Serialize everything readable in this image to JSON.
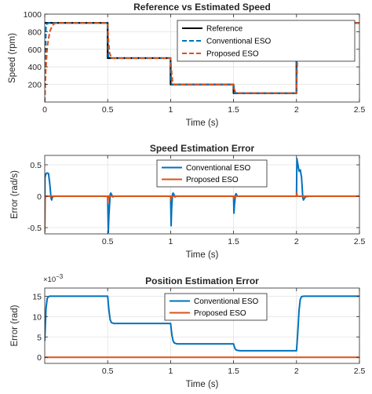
{
  "chart_data": [
    {
      "type": "line",
      "title": "Reference vs Estimated Speed",
      "xlabel": "Time (s)",
      "ylabel": "Speed (rpm)",
      "xlim": [
        0,
        2.5
      ],
      "ylim": [
        0,
        1000
      ],
      "xticks": [
        0,
        0.5,
        1,
        1.5,
        2,
        2.5
      ],
      "xtick_labels": [
        "0",
        "0.5",
        "1",
        "1.5",
        "2",
        "2.5"
      ],
      "yticks": [
        200,
        400,
        600,
        800,
        1000
      ],
      "ytick_labels": [
        "200",
        "400",
        "600",
        "800",
        "1000"
      ],
      "grid": true,
      "legend_position": "top-right",
      "series": [
        {
          "name": "Reference",
          "color": "#000000",
          "style": "solid",
          "x": [
            0,
            0,
            0.5,
            0.5,
            1,
            1,
            1.5,
            1.5,
            2,
            2,
            2.5
          ],
          "y": [
            900,
            900,
            900,
            500,
            500,
            200,
            200,
            100,
            100,
            900,
            900
          ]
        },
        {
          "name": "Conventional ESO",
          "color": "#0072BD",
          "style": "dashed",
          "x": [
            0,
            0.01,
            0.03,
            0.5,
            0.505,
            0.51,
            1,
            1.005,
            1.01,
            1.5,
            1.505,
            1.51,
            2,
            2.005,
            2.015,
            2.5
          ],
          "y": [
            0,
            880,
            900,
            900,
            520,
            500,
            500,
            215,
            200,
            200,
            110,
            100,
            100,
            880,
            900,
            900
          ]
        },
        {
          "name": "Proposed ESO",
          "color": "#D95319",
          "style": "dashed",
          "x": [
            0,
            0.008,
            0.02,
            0.04,
            0.06,
            0.08,
            0.1,
            0.5,
            0.505,
            0.515,
            0.53,
            1,
            1.005,
            1.015,
            1.03,
            1.5,
            1.505,
            1.515,
            1.53,
            2,
            2.005,
            2.02,
            2.035,
            2.5
          ],
          "y": [
            0,
            350,
            630,
            800,
            870,
            895,
            900,
            900,
            720,
            560,
            500,
            500,
            380,
            240,
            200,
            200,
            150,
            110,
            100,
            100,
            400,
            780,
            900,
            900
          ]
        }
      ]
    },
    {
      "type": "line",
      "title": "Speed Estimation Error",
      "xlabel": "Time (s)",
      "ylabel": "Error (rad/s)",
      "xlim": [
        0,
        2.5
      ],
      "ylim": [
        -0.6,
        0.65
      ],
      "xticks": [
        0.5,
        1,
        1.5,
        2,
        2.5
      ],
      "xtick_labels": [
        "0.5",
        "1",
        "1.5",
        "2",
        "2.5"
      ],
      "yticks": [
        -0.5,
        0,
        0.5
      ],
      "ytick_labels": [
        "-0.5",
        "0",
        "0.5"
      ],
      "grid": true,
      "legend_position": "top-center",
      "series": [
        {
          "name": "Conventional ESO",
          "color": "#0072BD",
          "style": "solid",
          "x": [
            0,
            0.002,
            0.01,
            0.02,
            0.03,
            0.04,
            0.05,
            0.055,
            0.06,
            0.07,
            0.1,
            0.5,
            0.505,
            0.51,
            0.52,
            0.525,
            0.53,
            0.54,
            0.55,
            1,
            1.004,
            1.008,
            1.015,
            1.02,
            1.028,
            1.035,
            1.045,
            1.5,
            1.503,
            1.507,
            1.515,
            1.52,
            1.53,
            1.54,
            2,
            2.003,
            2.01,
            2.02,
            2.03,
            2.04,
            2.05,
            2.055,
            2.07,
            2.1,
            2.5
          ],
          "y": [
            -0.55,
            0.3,
            0.36,
            0.37,
            0.36,
            0.2,
            -0.03,
            -0.06,
            -0.02,
            0,
            0,
            0,
            -0.58,
            -0.3,
            0.03,
            0.05,
            0.03,
            -0.01,
            0,
            0,
            -0.47,
            -0.2,
            0.03,
            0.05,
            0.02,
            -0.01,
            0,
            0,
            -0.27,
            -0.14,
            0.02,
            0.04,
            0,
            0,
            0,
            0.6,
            0.52,
            0.4,
            0.42,
            0.3,
            -0.02,
            -0.06,
            -0.01,
            0,
            0
          ]
        },
        {
          "name": "Proposed ESO",
          "color": "#D95319",
          "style": "solid",
          "x": [
            0,
            0.003,
            0.006,
            0.5,
            0.502,
            0.506,
            1,
            1.002,
            1.006,
            1.5,
            1.502,
            1.506,
            2,
            2.002,
            2.006,
            2.5
          ],
          "y": [
            -0.58,
            -0.05,
            0,
            0,
            -0.1,
            0,
            0,
            -0.06,
            0,
            0,
            -0.04,
            0,
            0,
            0.05,
            0,
            0
          ]
        }
      ]
    },
    {
      "type": "line",
      "title": "Position Estimation Error",
      "xlabel": "Time (s)",
      "ylabel": "Error (rad)",
      "axis_exponent": "×10",
      "axis_exponent_power": "−3",
      "xlim": [
        0,
        2.5
      ],
      "ylim": [
        -0.0015,
        0.017
      ],
      "xticks": [
        0.5,
        1,
        1.5,
        2,
        2.5
      ],
      "xtick_labels": [
        "0.5",
        "1",
        "1.5",
        "2",
        "2.5"
      ],
      "yticks": [
        0,
        0.005,
        0.01,
        0.015
      ],
      "ytick_labels": [
        "0",
        "5",
        "10",
        "15"
      ],
      "grid": true,
      "legend_position": "top-center",
      "series": [
        {
          "name": "Conventional ESO",
          "color": "#0072BD",
          "style": "solid",
          "x": [
            0,
            0.01,
            0.02,
            0.03,
            0.04,
            0.06,
            0.5,
            0.51,
            0.52,
            0.53,
            0.55,
            1,
            1.01,
            1.02,
            1.03,
            1.05,
            1.5,
            1.51,
            1.52,
            1.53,
            1.55,
            2,
            2.01,
            2.02,
            2.03,
            2.04,
            2.06,
            2.5
          ],
          "y": [
            0.004,
            0.012,
            0.0145,
            0.0149,
            0.015,
            0.015,
            0.015,
            0.0115,
            0.0092,
            0.0085,
            0.0083,
            0.0083,
            0.0055,
            0.004,
            0.0035,
            0.0033,
            0.0033,
            0.0022,
            0.0018,
            0.0017,
            0.0016,
            0.0016,
            0.006,
            0.0115,
            0.0142,
            0.0149,
            0.015,
            0.015
          ]
        },
        {
          "name": "Proposed ESO",
          "color": "#D95319",
          "style": "solid",
          "x": [
            0,
            2.5
          ],
          "y": [
            0,
            0
          ]
        }
      ]
    }
  ]
}
